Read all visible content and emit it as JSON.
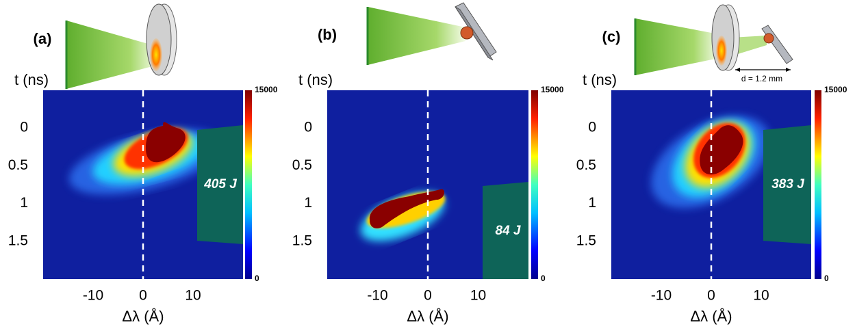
{
  "chart_data": [
    {
      "type": "heatmap",
      "panel": "(a)",
      "y_label": "t (ns)",
      "x_label": "Δλ (Å)",
      "xlim": [
        -20,
        20
      ],
      "ylim": [
        2,
        -0.5
      ],
      "xticks": [
        -10,
        0,
        10
      ],
      "yticks": [
        0,
        0.5,
        1,
        1.5
      ],
      "reference_x": 0,
      "colorbar": {
        "lim": [
          0,
          15000
        ],
        "ticks": [
          0,
          15000
        ]
      },
      "energy": "405 J"
    },
    {
      "type": "heatmap",
      "panel": "(b)",
      "y_label": "t (ns)",
      "x_label": "Δλ (Å)",
      "xlim": [
        -20,
        20
      ],
      "ylim": [
        2,
        -0.5
      ],
      "xticks": [
        -10,
        0,
        10
      ],
      "yticks": [
        0,
        0.5,
        1,
        1.5
      ],
      "reference_x": 0,
      "colorbar": {
        "lim": [
          0,
          15000
        ],
        "ticks": [
          0,
          15000
        ]
      },
      "energy": "84 J"
    },
    {
      "type": "heatmap",
      "panel": "(c)",
      "y_label": "t (ns)",
      "x_label": "Δλ (Å)",
      "xlim": [
        -20,
        20
      ],
      "ylim": [
        2,
        -0.5
      ],
      "xticks": [
        -10,
        0,
        10
      ],
      "yticks": [
        0,
        0.5,
        1,
        1.5
      ],
      "reference_x": 0,
      "colorbar": {
        "lim": [
          0,
          15000
        ],
        "ticks": [
          0,
          15000
        ]
      },
      "energy": "383 J",
      "distance": "d = 1.2 mm"
    }
  ]
}
